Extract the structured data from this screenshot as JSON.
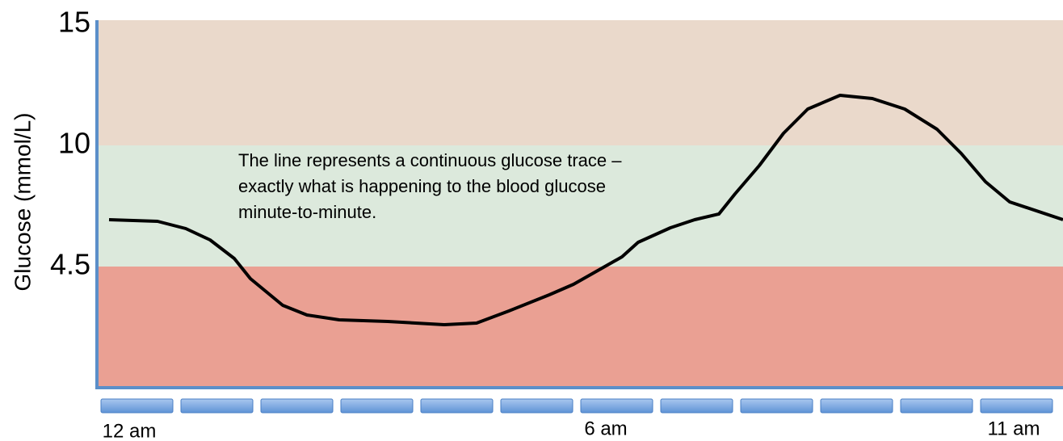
{
  "y_axis": {
    "label": "Glucose (mmol/L)",
    "ticks": [
      "15",
      "10",
      "4.5"
    ]
  },
  "x_axis": {
    "labels": [
      "12 am",
      "6 am",
      "11 am"
    ]
  },
  "annotation": [
    "The line represents a continuous glucose trace –",
    "exactly what is happening to the blood glucose",
    "minute-to-minute."
  ]
}
